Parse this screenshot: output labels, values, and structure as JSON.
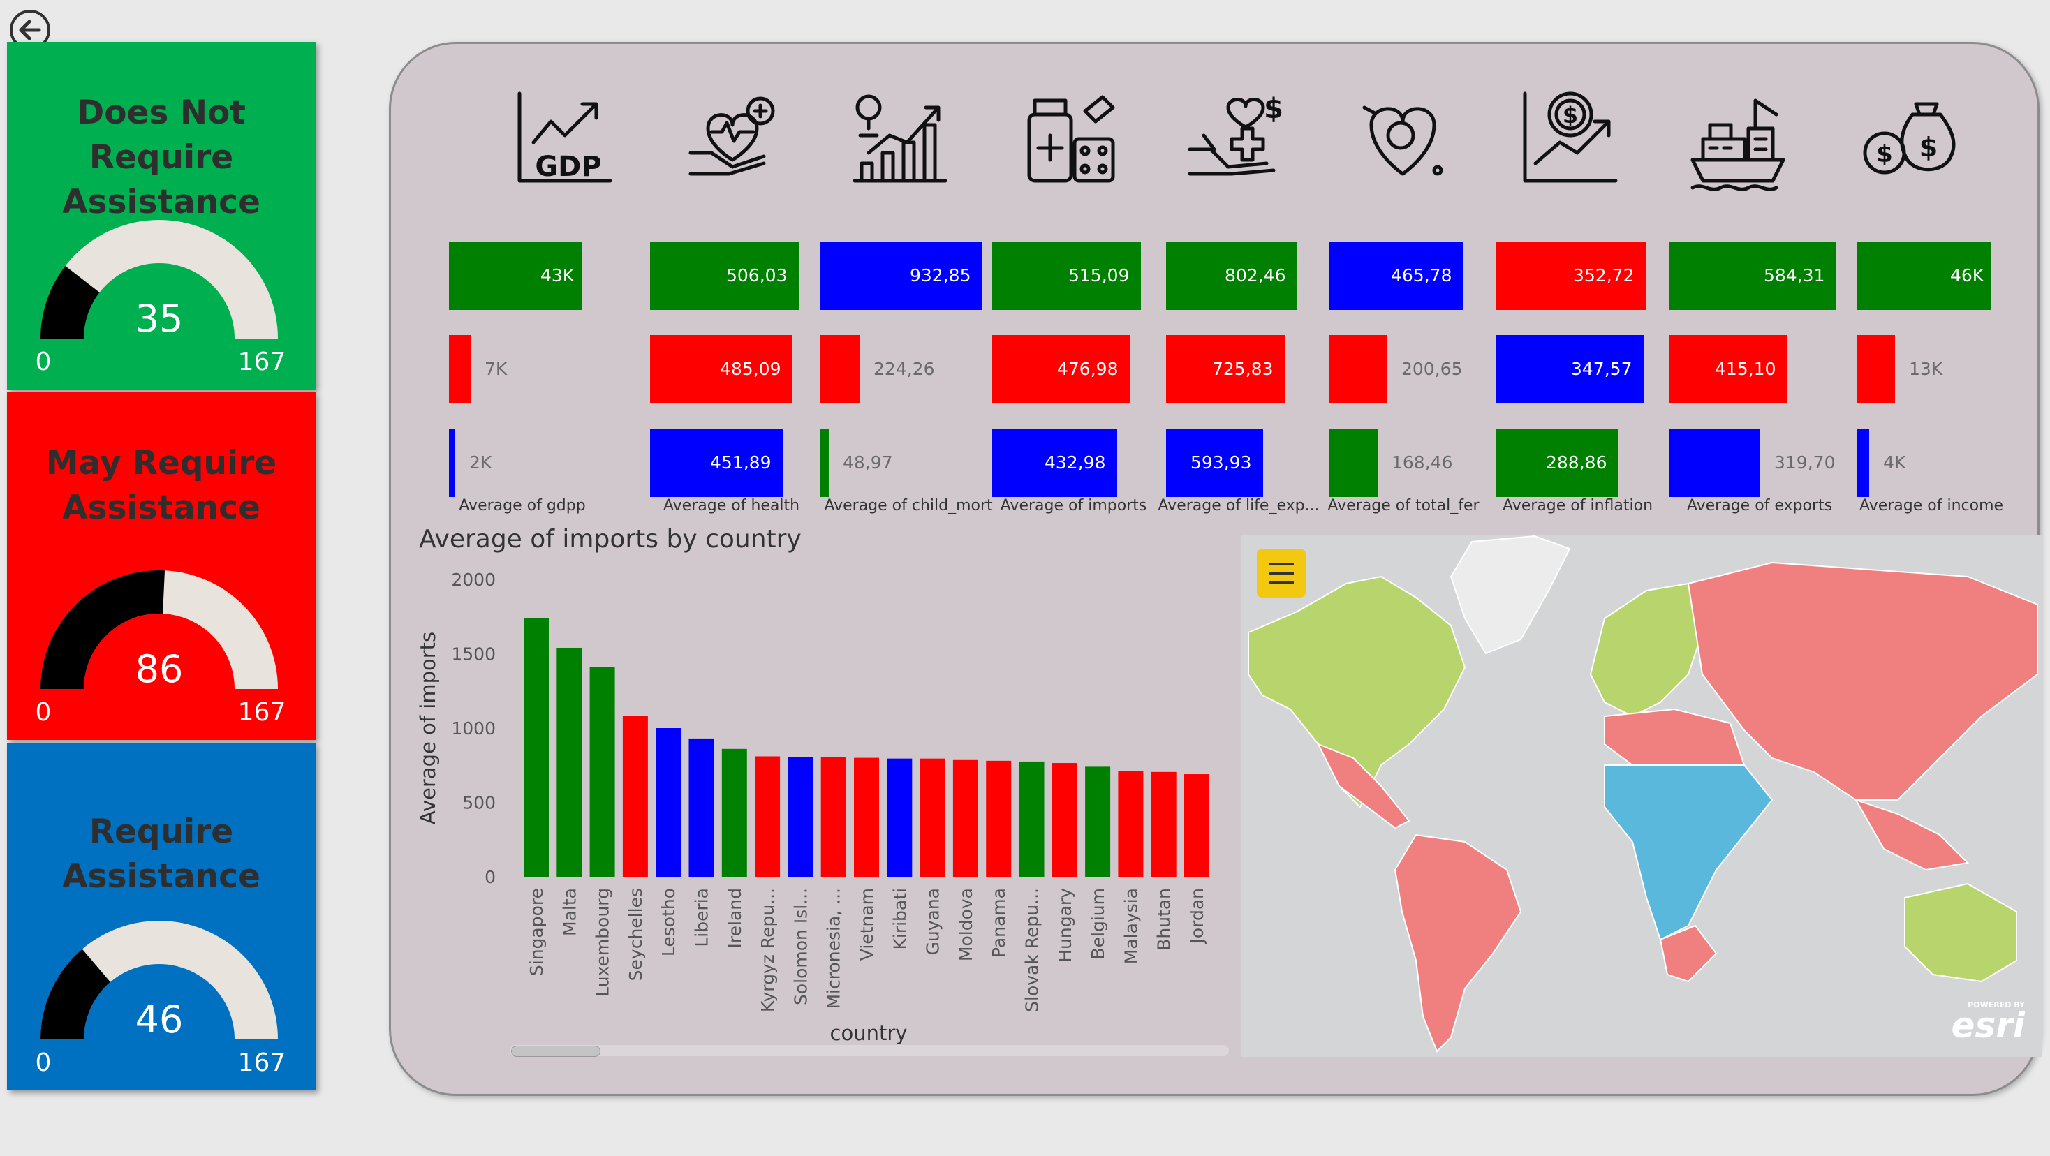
{
  "colors": {
    "green": "#00b050",
    "red": "#ff0000",
    "blue": "#0070c0",
    "bar_green": "#008000",
    "bar_red": "#ff0000",
    "bar_blue": "#0000ff",
    "gauge_fill": "#000000",
    "gauge_track": "#e8e3dd"
  },
  "icons": [
    "gdp-icon",
    "health-icon",
    "child-mortality-icon",
    "imports-icon",
    "life-expectancy-icon",
    "fertility-icon",
    "inflation-icon",
    "exports-icon",
    "income-icon"
  ],
  "cards": [
    {
      "title_line1": "Does Not",
      "title_line2": "Require Assistance",
      "value": 35,
      "min": "0",
      "max": "167",
      "bg": "#00b050",
      "value_text": "35"
    },
    {
      "title_line1": "May Require",
      "title_line2": "Assistance",
      "value": 86,
      "min": "0",
      "max": "167",
      "bg": "#ff0000",
      "value_text": "86"
    },
    {
      "title_line1": "Require Assistance",
      "title_line2": "",
      "value": 46,
      "min": "0",
      "max": "167",
      "bg": "#0070c0",
      "value_text": "46"
    }
  ],
  "metrics": [
    {
      "label": "Average of gdpp",
      "bars": [
        {
          "value": 43000,
          "text": "43K",
          "color": "green"
        },
        {
          "value": 7000,
          "text": "7K",
          "color": "red"
        },
        {
          "value": 2000,
          "text": "2K",
          "color": "blue"
        }
      ],
      "max": 43000
    },
    {
      "label": "Average of health",
      "bars": [
        {
          "value": 506.03,
          "text": "506,03",
          "color": "green"
        },
        {
          "value": 485.09,
          "text": "485,09",
          "color": "red"
        },
        {
          "value": 451.89,
          "text": "451,89",
          "color": "blue"
        }
      ],
      "max": 506.03
    },
    {
      "label": "Average of child_mort",
      "bars": [
        {
          "value": 932.85,
          "text": "932,85",
          "color": "blue"
        },
        {
          "value": 224.26,
          "text": "224,26",
          "color": "red"
        },
        {
          "value": 48.97,
          "text": "48,97",
          "color": "green"
        }
      ],
      "max": 932.85
    },
    {
      "label": "Average of imports",
      "bars": [
        {
          "value": 515.09,
          "text": "515,09",
          "color": "green"
        },
        {
          "value": 476.98,
          "text": "476,98",
          "color": "red"
        },
        {
          "value": 432.98,
          "text": "432,98",
          "color": "blue"
        }
      ],
      "max": 515.09
    },
    {
      "label": "Average of life_exp...",
      "bars": [
        {
          "value": 802.46,
          "text": "802,46",
          "color": "green"
        },
        {
          "value": 725.83,
          "text": "725,83",
          "color": "red"
        },
        {
          "value": 593.93,
          "text": "593,93",
          "color": "blue"
        }
      ],
      "max": 802.46
    },
    {
      "label": "Average of total_fer",
      "bars": [
        {
          "value": 465.78,
          "text": "465,78",
          "color": "blue"
        },
        {
          "value": 200.65,
          "text": "200,65",
          "color": "red"
        },
        {
          "value": 168.46,
          "text": "168,46",
          "color": "green"
        }
      ],
      "max": 465.78
    },
    {
      "label": "Average of inflation",
      "bars": [
        {
          "value": 352.72,
          "text": "352,72",
          "color": "red"
        },
        {
          "value": 347.57,
          "text": "347,57",
          "color": "blue"
        },
        {
          "value": 288.86,
          "text": "288,86",
          "color": "green"
        }
      ],
      "max": 352.72
    },
    {
      "label": "Average of exports",
      "bars": [
        {
          "value": 584.31,
          "text": "584,31",
          "color": "green"
        },
        {
          "value": 415.1,
          "text": "415,10",
          "color": "red"
        },
        {
          "value": 319.7,
          "text": "319,70",
          "color": "blue"
        }
      ],
      "max": 584.31
    },
    {
      "label": "Average of income",
      "bars": [
        {
          "value": 46000,
          "text": "46K",
          "color": "green"
        },
        {
          "value": 13000,
          "text": "13K",
          "color": "red"
        },
        {
          "value": 4000,
          "text": "4K",
          "color": "blue"
        }
      ],
      "max": 46000
    }
  ],
  "chart_data": {
    "type": "bar",
    "title": "Average of imports by country",
    "xlabel": "country",
    "ylabel": "Average of imports",
    "ylim": [
      0,
      2000
    ],
    "yticks": [
      "0",
      "500",
      "1000",
      "1500",
      "2000"
    ],
    "categories": [
      "Singapore",
      "Malta",
      "Luxembourg",
      "Seychelles",
      "Lesotho",
      "Liberia",
      "Ireland",
      "Kyrgyz Repu...",
      "Solomon Isl...",
      "Micronesia, ...",
      "Vietnam",
      "Kiribati",
      "Guyana",
      "Moldova",
      "Panama",
      "Slovak Repu...",
      "Hungary",
      "Belgium",
      "Malaysia",
      "Bhutan",
      "Jordan"
    ],
    "values": [
      1740,
      1540,
      1410,
      1080,
      1000,
      930,
      860,
      810,
      805,
      805,
      800,
      795,
      795,
      785,
      780,
      775,
      765,
      740,
      710,
      705,
      690
    ],
    "colors": [
      "green",
      "green",
      "green",
      "red",
      "blue",
      "blue",
      "green",
      "red",
      "blue",
      "red",
      "red",
      "blue",
      "red",
      "red",
      "red",
      "green",
      "red",
      "green",
      "red",
      "red",
      "red"
    ]
  },
  "map": {
    "brand_small": "POWERED BY",
    "brand": "esri"
  }
}
